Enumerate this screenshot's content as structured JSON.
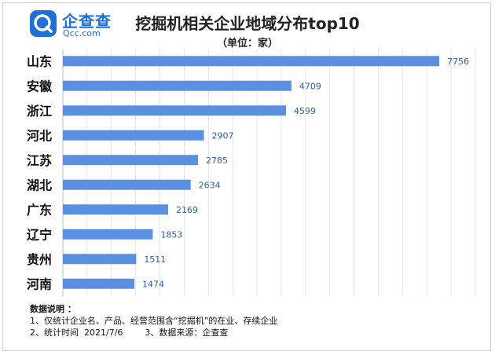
{
  "brand": {
    "name": "企查查",
    "sub": "Qcc.com",
    "color": "#1f6fd6"
  },
  "chart_data": {
    "type": "bar",
    "orientation": "horizontal",
    "title": "挖掘机相关企业地域分布top10",
    "subtitle": "（单位：家）",
    "categories": [
      "山东",
      "安徽",
      "浙江",
      "河北",
      "江苏",
      "湖北",
      "广东",
      "辽宁",
      "贵州",
      "河南"
    ],
    "values": [
      7756,
      4709,
      4599,
      2907,
      2785,
      2634,
      2169,
      1853,
      1511,
      1474
    ],
    "xlim": [
      0,
      8500
    ],
    "grid": true,
    "bar_color": "#5b8fe0",
    "label_color": "#2e5f9e"
  },
  "notes": {
    "heading": "数据说明 ：",
    "line1": "1、仅统计企业名、产品、经营范围含“挖掘机”的在业、存续企业",
    "line2": "2、统计时间  2021/7/6        3、数据来源：企查查"
  }
}
